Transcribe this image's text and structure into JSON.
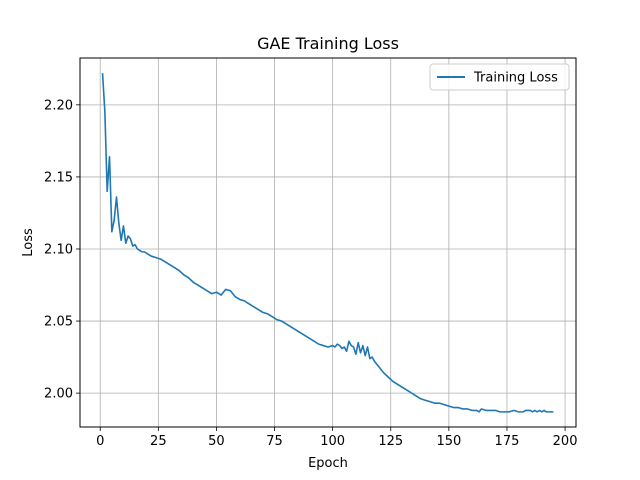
{
  "chart_data": {
    "type": "line",
    "title": "GAE Training Loss",
    "xlabel": "Epoch",
    "ylabel": "Loss",
    "xlim": [
      -8.7,
      204.7
    ],
    "ylim": [
      1.9765,
      2.2325
    ],
    "xticks": [
      0,
      25,
      50,
      75,
      100,
      125,
      150,
      175,
      200
    ],
    "yticks": [
      2.0,
      2.05,
      2.1,
      2.15,
      2.2
    ],
    "ytick_labels": [
      "2.00",
      "2.05",
      "2.10",
      "2.15",
      "2.20"
    ],
    "grid": true,
    "legend_position": "upper right",
    "series": [
      {
        "name": "Training Loss",
        "color": "#1f77b4",
        "x": [
          1,
          2,
          3,
          4,
          5,
          6,
          7,
          8,
          9,
          10,
          11,
          12,
          13,
          14,
          15,
          16,
          17,
          18,
          19,
          20,
          22,
          24,
          26,
          28,
          30,
          32,
          34,
          36,
          38,
          40,
          42,
          44,
          46,
          48,
          50,
          52,
          54,
          56,
          57,
          58,
          60,
          62,
          64,
          66,
          68,
          70,
          72,
          74,
          76,
          78,
          80,
          82,
          84,
          86,
          88,
          90,
          92,
          94,
          96,
          98,
          100,
          101,
          102,
          103,
          104,
          105,
          106,
          107,
          108,
          109,
          110,
          111,
          112,
          113,
          114,
          115,
          116,
          117,
          118,
          120,
          122,
          124,
          126,
          128,
          130,
          132,
          134,
          136,
          138,
          140,
          142,
          144,
          146,
          148,
          150,
          152,
          154,
          156,
          158,
          160,
          162,
          163,
          164,
          166,
          168,
          170,
          172,
          174,
          176,
          178,
          180,
          182,
          183,
          184,
          185,
          186,
          187,
          188,
          189,
          190,
          191,
          192,
          193,
          194,
          195
        ],
        "y": [
          2.222,
          2.195,
          2.14,
          2.164,
          2.112,
          2.12,
          2.136,
          2.118,
          2.106,
          2.116,
          2.104,
          2.109,
          2.107,
          2.102,
          2.103,
          2.1,
          2.099,
          2.098,
          2.098,
          2.097,
          2.095,
          2.094,
          2.093,
          2.091,
          2.089,
          2.087,
          2.085,
          2.082,
          2.08,
          2.077,
          2.075,
          2.073,
          2.071,
          2.069,
          2.07,
          2.068,
          2.072,
          2.071,
          2.069,
          2.067,
          2.065,
          2.064,
          2.062,
          2.06,
          2.058,
          2.056,
          2.055,
          2.053,
          2.051,
          2.05,
          2.048,
          2.046,
          2.044,
          2.042,
          2.04,
          2.038,
          2.036,
          2.034,
          2.033,
          2.032,
          2.033,
          2.032,
          2.034,
          2.033,
          2.031,
          2.032,
          2.029,
          2.036,
          2.033,
          2.032,
          2.027,
          2.035,
          2.028,
          2.033,
          2.026,
          2.032,
          2.024,
          2.025,
          2.022,
          2.018,
          2.014,
          2.011,
          2.008,
          2.006,
          2.004,
          2.002,
          2.0,
          1.998,
          1.996,
          1.995,
          1.994,
          1.993,
          1.993,
          1.992,
          1.991,
          1.99,
          1.99,
          1.989,
          1.989,
          1.988,
          1.988,
          1.987,
          1.989,
          1.988,
          1.988,
          1.988,
          1.987,
          1.987,
          1.987,
          1.988,
          1.987,
          1.987,
          1.988,
          1.988,
          1.988,
          1.987,
          1.988,
          1.987,
          1.988,
          1.987,
          1.988,
          1.987,
          1.987,
          1.987,
          1.987
        ]
      }
    ]
  }
}
